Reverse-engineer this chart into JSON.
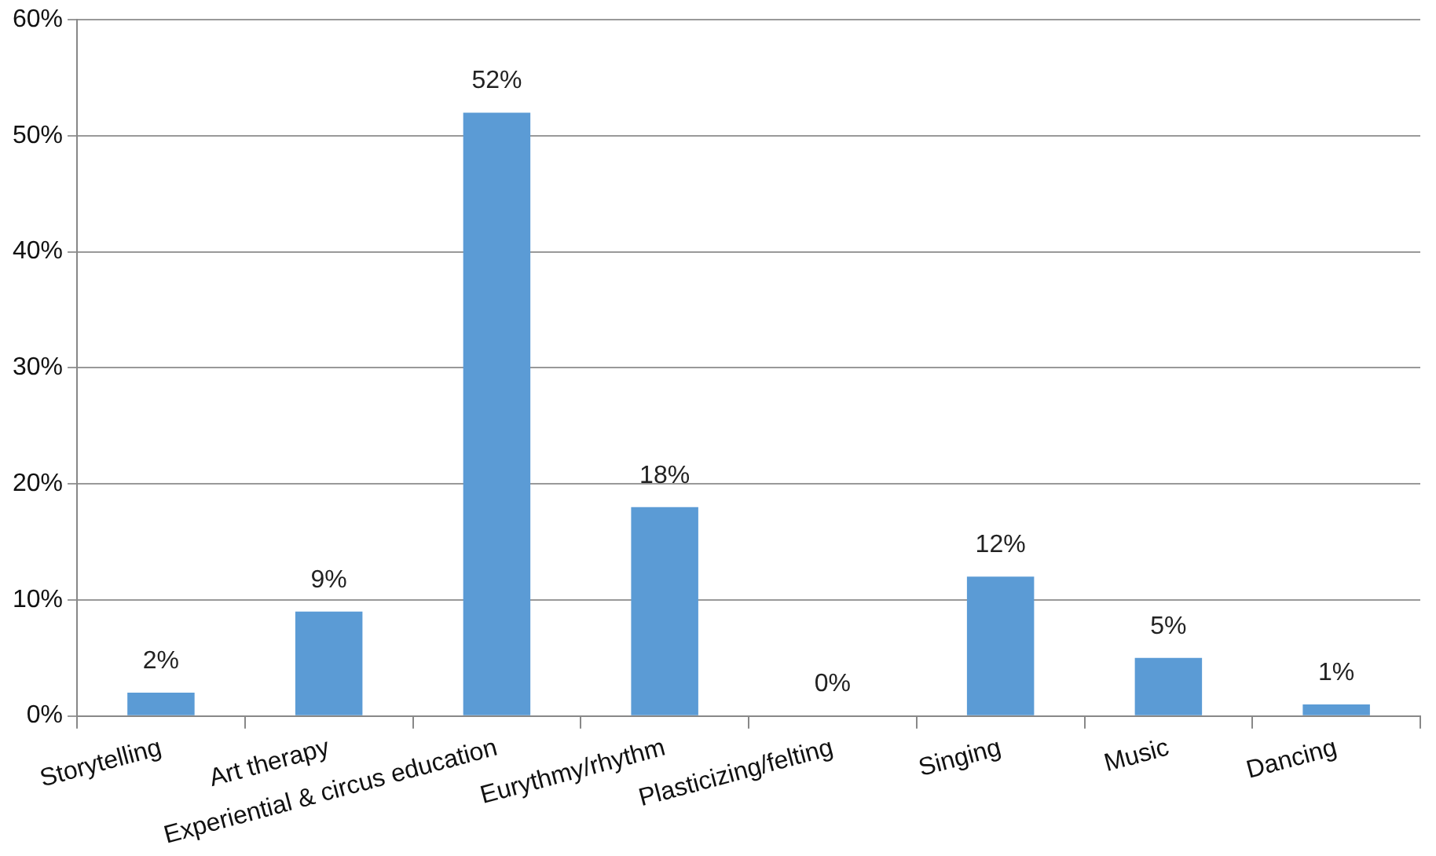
{
  "chart_data": {
    "type": "bar",
    "categories": [
      "Storytelling",
      "Art therapy",
      "Experiential & circus education",
      "Eurythmy/rhythm",
      "Plasticizing/felting",
      "Singing",
      "Music",
      "Dancing"
    ],
    "values": [
      2,
      9,
      52,
      18,
      0,
      12,
      5,
      1
    ],
    "value_labels": [
      "2%",
      "9%",
      "52%",
      "18%",
      "0%",
      "12%",
      "5%",
      "1%"
    ],
    "color": "#5b9bd5",
    "ylim": [
      0,
      60
    ],
    "yticks": [
      {
        "value": 0,
        "label": "0%"
      },
      {
        "value": 10,
        "label": "10%"
      },
      {
        "value": 20,
        "label": "20%"
      },
      {
        "value": 30,
        "label": "30%"
      },
      {
        "value": 40,
        "label": "40%"
      },
      {
        "value": 50,
        "label": "50%"
      },
      {
        "value": 60,
        "label": "60%"
      }
    ],
    "grid": "y"
  }
}
